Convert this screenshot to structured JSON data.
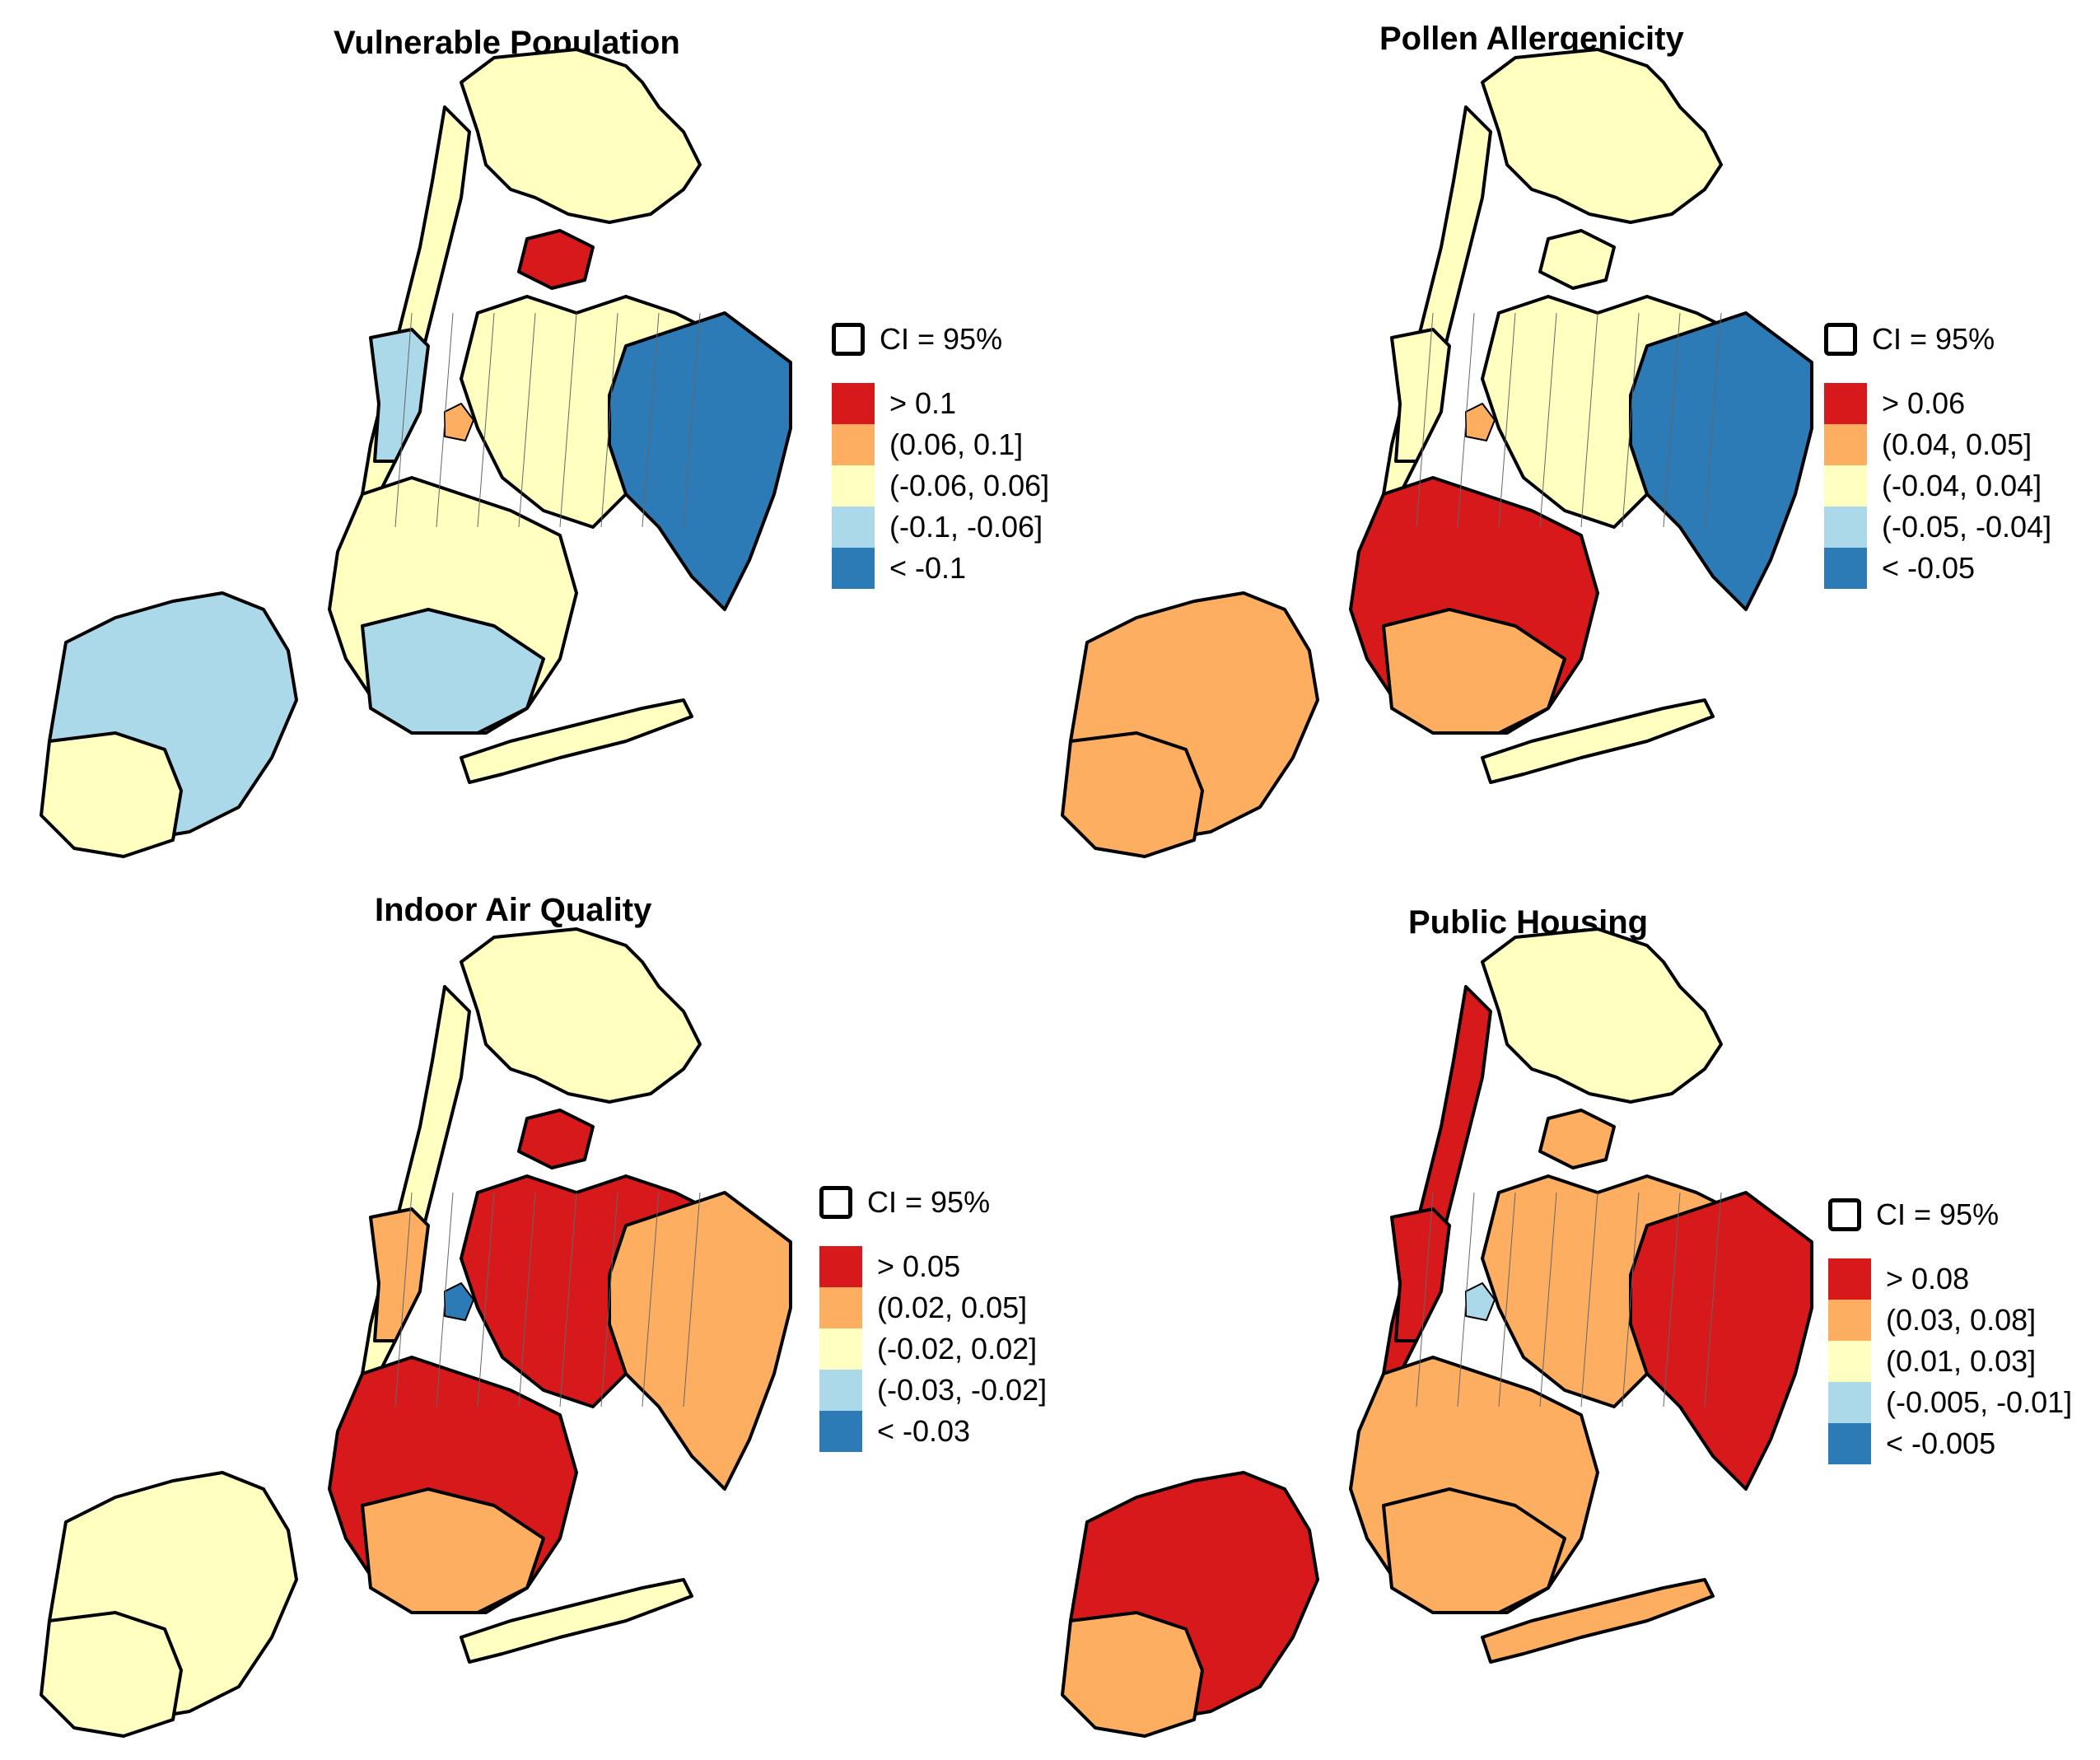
{
  "colors": {
    "dark_red": "#d7191c",
    "orange": "#fdae61",
    "light_yellow": "#ffffbf",
    "light_blue": "#abd9e9",
    "dark_blue": "#2c7bb6"
  },
  "ci_label": "CI = 95%",
  "panels": [
    {
      "title": "Vulnerable Population",
      "legend": [
        "> 0.1",
        "(0.06, 0.1]",
        "(-0.06, 0.06]",
        "(-0.1, -0.06]",
        "< -0.1"
      ],
      "colors": {
        "bronx": "#ffffbf",
        "bronx_south": "#d7191c",
        "manhattan": "#ffffbf",
        "manhattan_mid": "#abd9e9",
        "queens": "#ffffbf",
        "queens_east": "#2c7bb6",
        "brooklyn": "#ffffbf",
        "brooklyn_south": "#abd9e9",
        "staten": "#abd9e9",
        "staten_south": "#ffffbf",
        "rockaway": "#ffffbf",
        "accent": "#fdae61"
      }
    },
    {
      "title": "Pollen Allergenicity",
      "legend": [
        "> 0.06",
        "(0.04, 0.05]",
        "(-0.04, 0.04]",
        "(-0.05, -0.04]",
        "< -0.05"
      ],
      "colors": {
        "bronx": "#ffffbf",
        "bronx_south": "#ffffbf",
        "manhattan": "#ffffbf",
        "manhattan_mid": "#ffffbf",
        "queens": "#ffffbf",
        "queens_east": "#2c7bb6",
        "brooklyn": "#d7191c",
        "brooklyn_south": "#fdae61",
        "staten": "#fdae61",
        "staten_south": "#fdae61",
        "rockaway": "#ffffbf",
        "accent": "#fdae61"
      }
    },
    {
      "title": "Indoor Air Quality",
      "legend": [
        "> 0.05",
        "(0.02, 0.05]",
        "(-0.02, 0.02]",
        "(-0.03, -0.02]",
        "< -0.03"
      ],
      "colors": {
        "bronx": "#ffffbf",
        "bronx_south": "#d7191c",
        "manhattan": "#ffffbf",
        "manhattan_mid": "#fdae61",
        "queens": "#d7191c",
        "queens_east": "#fdae61",
        "brooklyn": "#d7191c",
        "brooklyn_south": "#fdae61",
        "staten": "#ffffbf",
        "staten_south": "#ffffbf",
        "rockaway": "#ffffbf",
        "accent": "#2c7bb6"
      }
    },
    {
      "title": "Public Housing",
      "legend": [
        "> 0.08",
        "(0.03, 0.08]",
        "(0.01, 0.03]",
        "(-0.005, -0.01]",
        "< -0.005"
      ],
      "colors": {
        "bronx": "#ffffbf",
        "bronx_south": "#fdae61",
        "manhattan": "#d7191c",
        "manhattan_mid": "#d7191c",
        "queens": "#fdae61",
        "queens_east": "#d7191c",
        "brooklyn": "#fdae61",
        "brooklyn_south": "#fdae61",
        "staten": "#d7191c",
        "staten_south": "#fdae61",
        "rockaway": "#fdae61",
        "accent": "#abd9e9"
      }
    }
  ]
}
